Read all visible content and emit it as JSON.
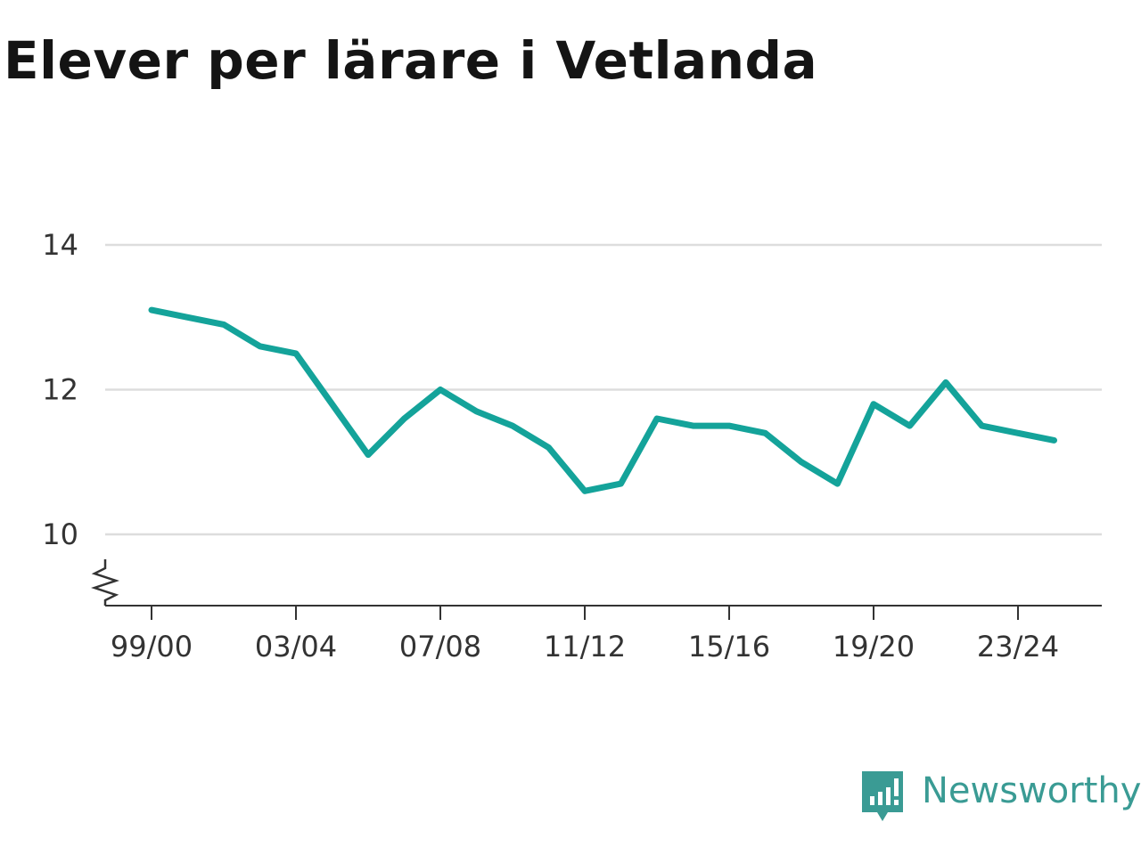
{
  "chart_data": {
    "type": "line",
    "title": "Elever per lärare i Vetlanda",
    "xlabel": "",
    "ylabel": "",
    "x": [
      "99/00",
      "00/01",
      "01/02",
      "02/03",
      "03/04",
      "04/05",
      "05/06",
      "06/07",
      "07/08",
      "08/09",
      "09/10",
      "10/11",
      "11/12",
      "12/13",
      "13/14",
      "14/15",
      "15/16",
      "16/17",
      "17/18",
      "18/19",
      "19/20",
      "20/21",
      "21/22",
      "22/23",
      "23/24",
      "24/25"
    ],
    "series": [
      {
        "values": [
          13.1,
          13.0,
          12.9,
          12.6,
          12.5,
          11.8,
          11.1,
          11.6,
          12.0,
          11.7,
          11.5,
          11.2,
          10.6,
          10.7,
          11.6,
          11.5,
          11.5,
          11.4,
          11.0,
          10.7,
          11.8,
          11.5,
          12.1,
          11.5,
          11.4,
          11.3
        ]
      }
    ],
    "xticks": [
      "99/00",
      "03/04",
      "07/08",
      "11/12",
      "15/16",
      "19/20",
      "23/24"
    ],
    "yticks": [
      10,
      12,
      14
    ],
    "ylim": [
      9,
      14.5
    ],
    "grid": true,
    "axis_break": true,
    "color": "#14a39a"
  },
  "brand": {
    "name": "Newsworthy",
    "icon": "newsworthy-logo-icon",
    "color": "#3a9b94"
  }
}
